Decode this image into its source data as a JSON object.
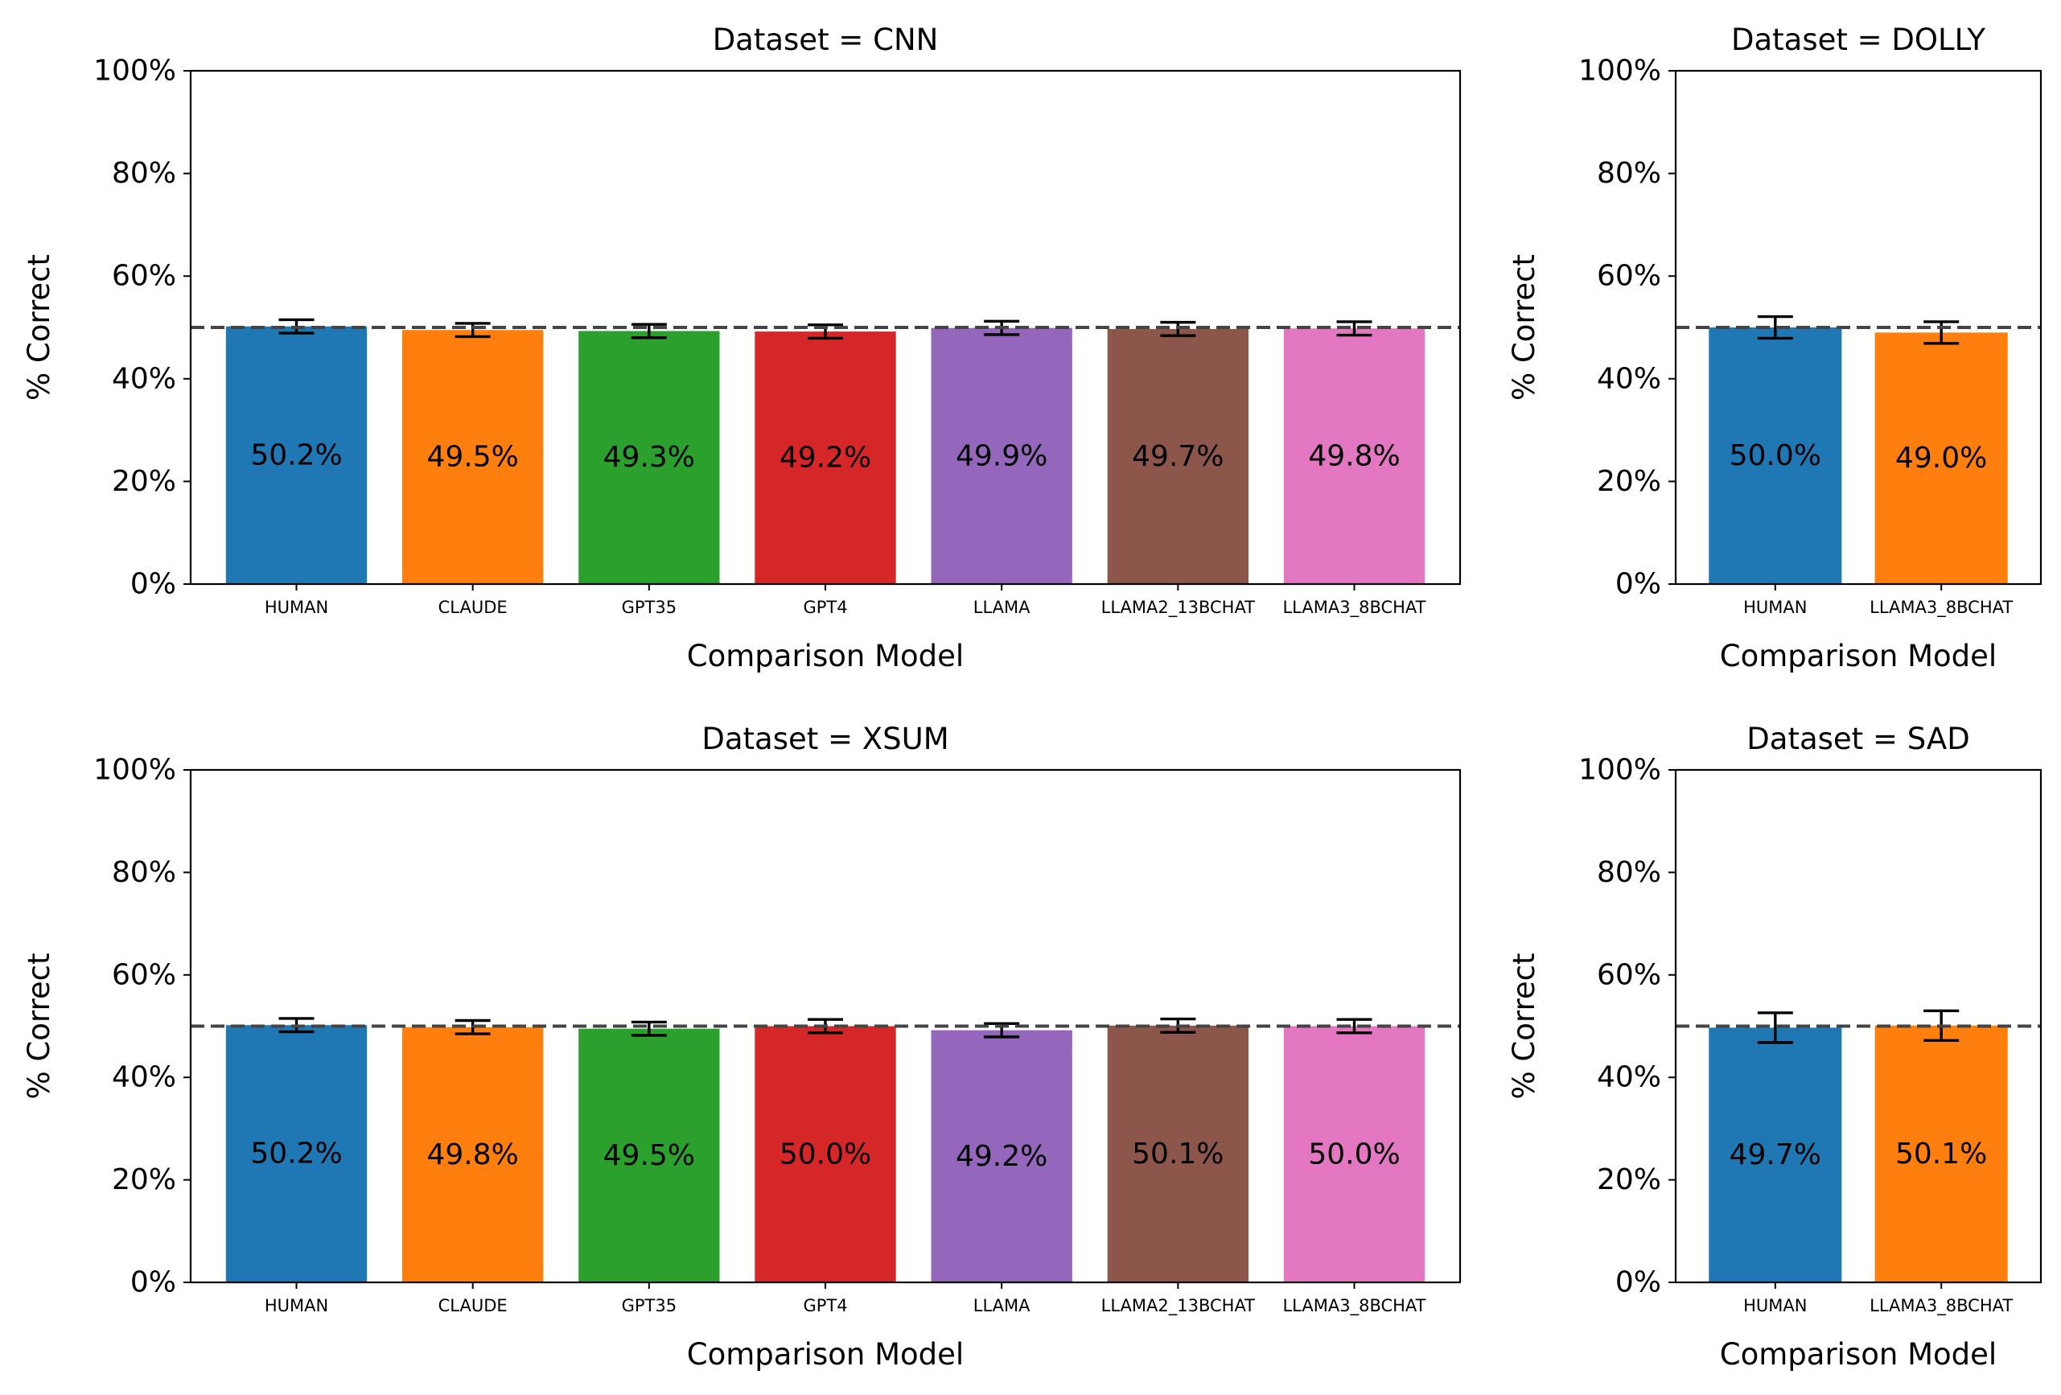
{
  "chart_data": [
    {
      "type": "bar",
      "title": "Dataset = CNN",
      "xlabel": "Comparison Model",
      "ylabel": "% Correct",
      "ylim": [
        0,
        100
      ],
      "yticks": [
        "0%",
        "20%",
        "40%",
        "60%",
        "80%",
        "100%"
      ],
      "reference_line": 50,
      "categories": [
        "HUMAN",
        "CLAUDE",
        "GPT35",
        "GPT4",
        "LLAMA",
        "LLAMA2_13BCHAT",
        "LLAMA3_8BCHAT"
      ],
      "values": [
        50.2,
        49.5,
        49.3,
        49.2,
        49.9,
        49.7,
        49.8
      ],
      "value_labels": [
        "50.2%",
        "49.5%",
        "49.3%",
        "49.2%",
        "49.9%",
        "49.7%",
        "49.8%"
      ],
      "error": [
        1.3,
        1.3,
        1.3,
        1.3,
        1.3,
        1.3,
        1.3
      ],
      "colors": [
        "#1f77b4",
        "#ff7f0e",
        "#2ca02c",
        "#d62728",
        "#9467bd",
        "#8c564b",
        "#e377c2"
      ]
    },
    {
      "type": "bar",
      "title": "Dataset = DOLLY",
      "xlabel": "Comparison Model",
      "ylabel": "% Correct",
      "ylim": [
        0,
        100
      ],
      "yticks": [
        "0%",
        "20%",
        "40%",
        "60%",
        "80%",
        "100%"
      ],
      "reference_line": 50,
      "categories": [
        "HUMAN",
        "LLAMA3_8BCHAT"
      ],
      "values": [
        50.0,
        49.0
      ],
      "value_labels": [
        "50.0%",
        "49.0%"
      ],
      "error": [
        2.1,
        2.1
      ],
      "colors": [
        "#1f77b4",
        "#ff7f0e"
      ]
    },
    {
      "type": "bar",
      "title": "Dataset = XSUM",
      "xlabel": "Comparison Model",
      "ylabel": "% Correct",
      "ylim": [
        0,
        100
      ],
      "yticks": [
        "0%",
        "20%",
        "40%",
        "60%",
        "80%",
        "100%"
      ],
      "reference_line": 50,
      "categories": [
        "HUMAN",
        "CLAUDE",
        "GPT35",
        "GPT4",
        "LLAMA",
        "LLAMA2_13BCHAT",
        "LLAMA3_8BCHAT"
      ],
      "values": [
        50.2,
        49.8,
        49.5,
        50.0,
        49.2,
        50.1,
        50.0
      ],
      "value_labels": [
        "50.2%",
        "49.8%",
        "49.5%",
        "50.0%",
        "49.2%",
        "50.1%",
        "50.0%"
      ],
      "error": [
        1.3,
        1.3,
        1.3,
        1.3,
        1.3,
        1.3,
        1.3
      ],
      "colors": [
        "#1f77b4",
        "#ff7f0e",
        "#2ca02c",
        "#d62728",
        "#9467bd",
        "#8c564b",
        "#e377c2"
      ]
    },
    {
      "type": "bar",
      "title": "Dataset = SAD",
      "xlabel": "Comparison Model",
      "ylabel": "% Correct",
      "ylim": [
        0,
        100
      ],
      "yticks": [
        "0%",
        "20%",
        "40%",
        "60%",
        "80%",
        "100%"
      ],
      "reference_line": 50,
      "categories": [
        "HUMAN",
        "LLAMA3_8BCHAT"
      ],
      "values": [
        49.7,
        50.1
      ],
      "value_labels": [
        "49.7%",
        "50.1%"
      ],
      "error": [
        2.9,
        2.9
      ],
      "colors": [
        "#1f77b4",
        "#ff7f0e"
      ]
    }
  ]
}
